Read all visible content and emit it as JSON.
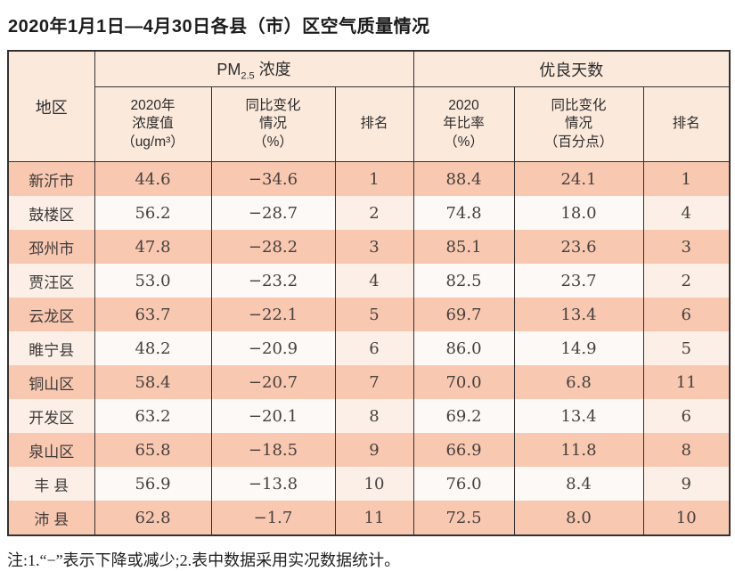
{
  "title": "2020年1月1日—4月30日各县（市）区空气质量情况",
  "note": "注:1.“−”表示下降或减少;2.表中数据采用实况数据统计。",
  "colors": {
    "row_odd_salmon": "#f9c8b1",
    "row_even_tint": "#fcefe7",
    "row_even_value": "#fdf9f6",
    "header_bg": "#fbe9dc",
    "border": "#333231"
  },
  "table": {
    "header": {
      "region": "地区",
      "pm25": {
        "base": "PM",
        "subscript": "2.5",
        "suffix": " 浓度"
      },
      "good_days": "优良天数",
      "sub": [
        "2020年\n浓度值\n（ug/m³）",
        "同比变化\n情况\n（%）",
        "排名",
        "2020\n年比率\n（%）",
        "同比变化\n情况\n（百分点）",
        "排名"
      ]
    },
    "rows": [
      [
        "新沂市",
        "44.6",
        "−34.6",
        "1",
        "88.4",
        "24.1",
        "1"
      ],
      [
        "鼓楼区",
        "56.2",
        "−28.7",
        "2",
        "74.8",
        "18.0",
        "4"
      ],
      [
        "邳州市",
        "47.8",
        "−28.2",
        "3",
        "85.1",
        "23.6",
        "3"
      ],
      [
        "贾汪区",
        "53.0",
        "−23.2",
        "4",
        "82.5",
        "23.7",
        "2"
      ],
      [
        "云龙区",
        "63.7",
        "−22.1",
        "5",
        "69.7",
        "13.4",
        "6"
      ],
      [
        "睢宁县",
        "48.2",
        "−20.9",
        "6",
        "86.0",
        "14.9",
        "5"
      ],
      [
        "铜山区",
        "58.4",
        "−20.7",
        "7",
        "70.0",
        "6.8",
        "11"
      ],
      [
        "开发区",
        "63.2",
        "−20.1",
        "8",
        "69.2",
        "13.4",
        "6"
      ],
      [
        "泉山区",
        "65.8",
        "−18.5",
        "9",
        "66.9",
        "11.8",
        "8"
      ],
      [
        "丰 县",
        "56.9",
        "−13.8",
        "10",
        "76.0",
        "8.4",
        "9"
      ],
      [
        "沛 县",
        "62.8",
        "−1.7",
        "11",
        "72.5",
        "8.0",
        "10"
      ]
    ]
  },
  "chart_data": {
    "type": "table",
    "title": "2020年1月1日—4月30日各县（市）区空气质量情况",
    "column_groups": [
      "地区",
      "PM2.5浓度",
      "优良天数"
    ],
    "columns": [
      "地区",
      "PM2.5浓度 2020年浓度值（ug/m³）",
      "PM2.5浓度 同比变化情况（%）",
      "PM2.5浓度 排名",
      "优良天数 2020年比率（%）",
      "优良天数 同比变化情况（百分点）",
      "优良天数 排名"
    ],
    "rows": [
      {
        "region": "新沂市",
        "pm25_value": 44.6,
        "pm25_change_pct": -34.6,
        "pm25_rank": 1,
        "good_rate_pct": 88.4,
        "good_change_points": 24.1,
        "good_rank": 1
      },
      {
        "region": "鼓楼区",
        "pm25_value": 56.2,
        "pm25_change_pct": -28.7,
        "pm25_rank": 2,
        "good_rate_pct": 74.8,
        "good_change_points": 18.0,
        "good_rank": 4
      },
      {
        "region": "邳州市",
        "pm25_value": 47.8,
        "pm25_change_pct": -28.2,
        "pm25_rank": 3,
        "good_rate_pct": 85.1,
        "good_change_points": 23.6,
        "good_rank": 3
      },
      {
        "region": "贾汪区",
        "pm25_value": 53.0,
        "pm25_change_pct": -23.2,
        "pm25_rank": 4,
        "good_rate_pct": 82.5,
        "good_change_points": 23.7,
        "good_rank": 2
      },
      {
        "region": "云龙区",
        "pm25_value": 63.7,
        "pm25_change_pct": -22.1,
        "pm25_rank": 5,
        "good_rate_pct": 69.7,
        "good_change_points": 13.4,
        "good_rank": 6
      },
      {
        "region": "睢宁县",
        "pm25_value": 48.2,
        "pm25_change_pct": -20.9,
        "pm25_rank": 6,
        "good_rate_pct": 86.0,
        "good_change_points": 14.9,
        "good_rank": 5
      },
      {
        "region": "铜山区",
        "pm25_value": 58.4,
        "pm25_change_pct": -20.7,
        "pm25_rank": 7,
        "good_rate_pct": 70.0,
        "good_change_points": 6.8,
        "good_rank": 11
      },
      {
        "region": "开发区",
        "pm25_value": 63.2,
        "pm25_change_pct": -20.1,
        "pm25_rank": 8,
        "good_rate_pct": 69.2,
        "good_change_points": 13.4,
        "good_rank": 6
      },
      {
        "region": "泉山区",
        "pm25_value": 65.8,
        "pm25_change_pct": -18.5,
        "pm25_rank": 9,
        "good_rate_pct": 66.9,
        "good_change_points": 11.8,
        "good_rank": 8
      },
      {
        "region": "丰县",
        "pm25_value": 56.9,
        "pm25_change_pct": -13.8,
        "pm25_rank": 10,
        "good_rate_pct": 76.0,
        "good_change_points": 8.4,
        "good_rank": 9
      },
      {
        "region": "沛县",
        "pm25_value": 62.8,
        "pm25_change_pct": -1.7,
        "pm25_rank": 11,
        "good_rate_pct": 72.5,
        "good_change_points": 8.0,
        "good_rank": 10
      }
    ]
  }
}
